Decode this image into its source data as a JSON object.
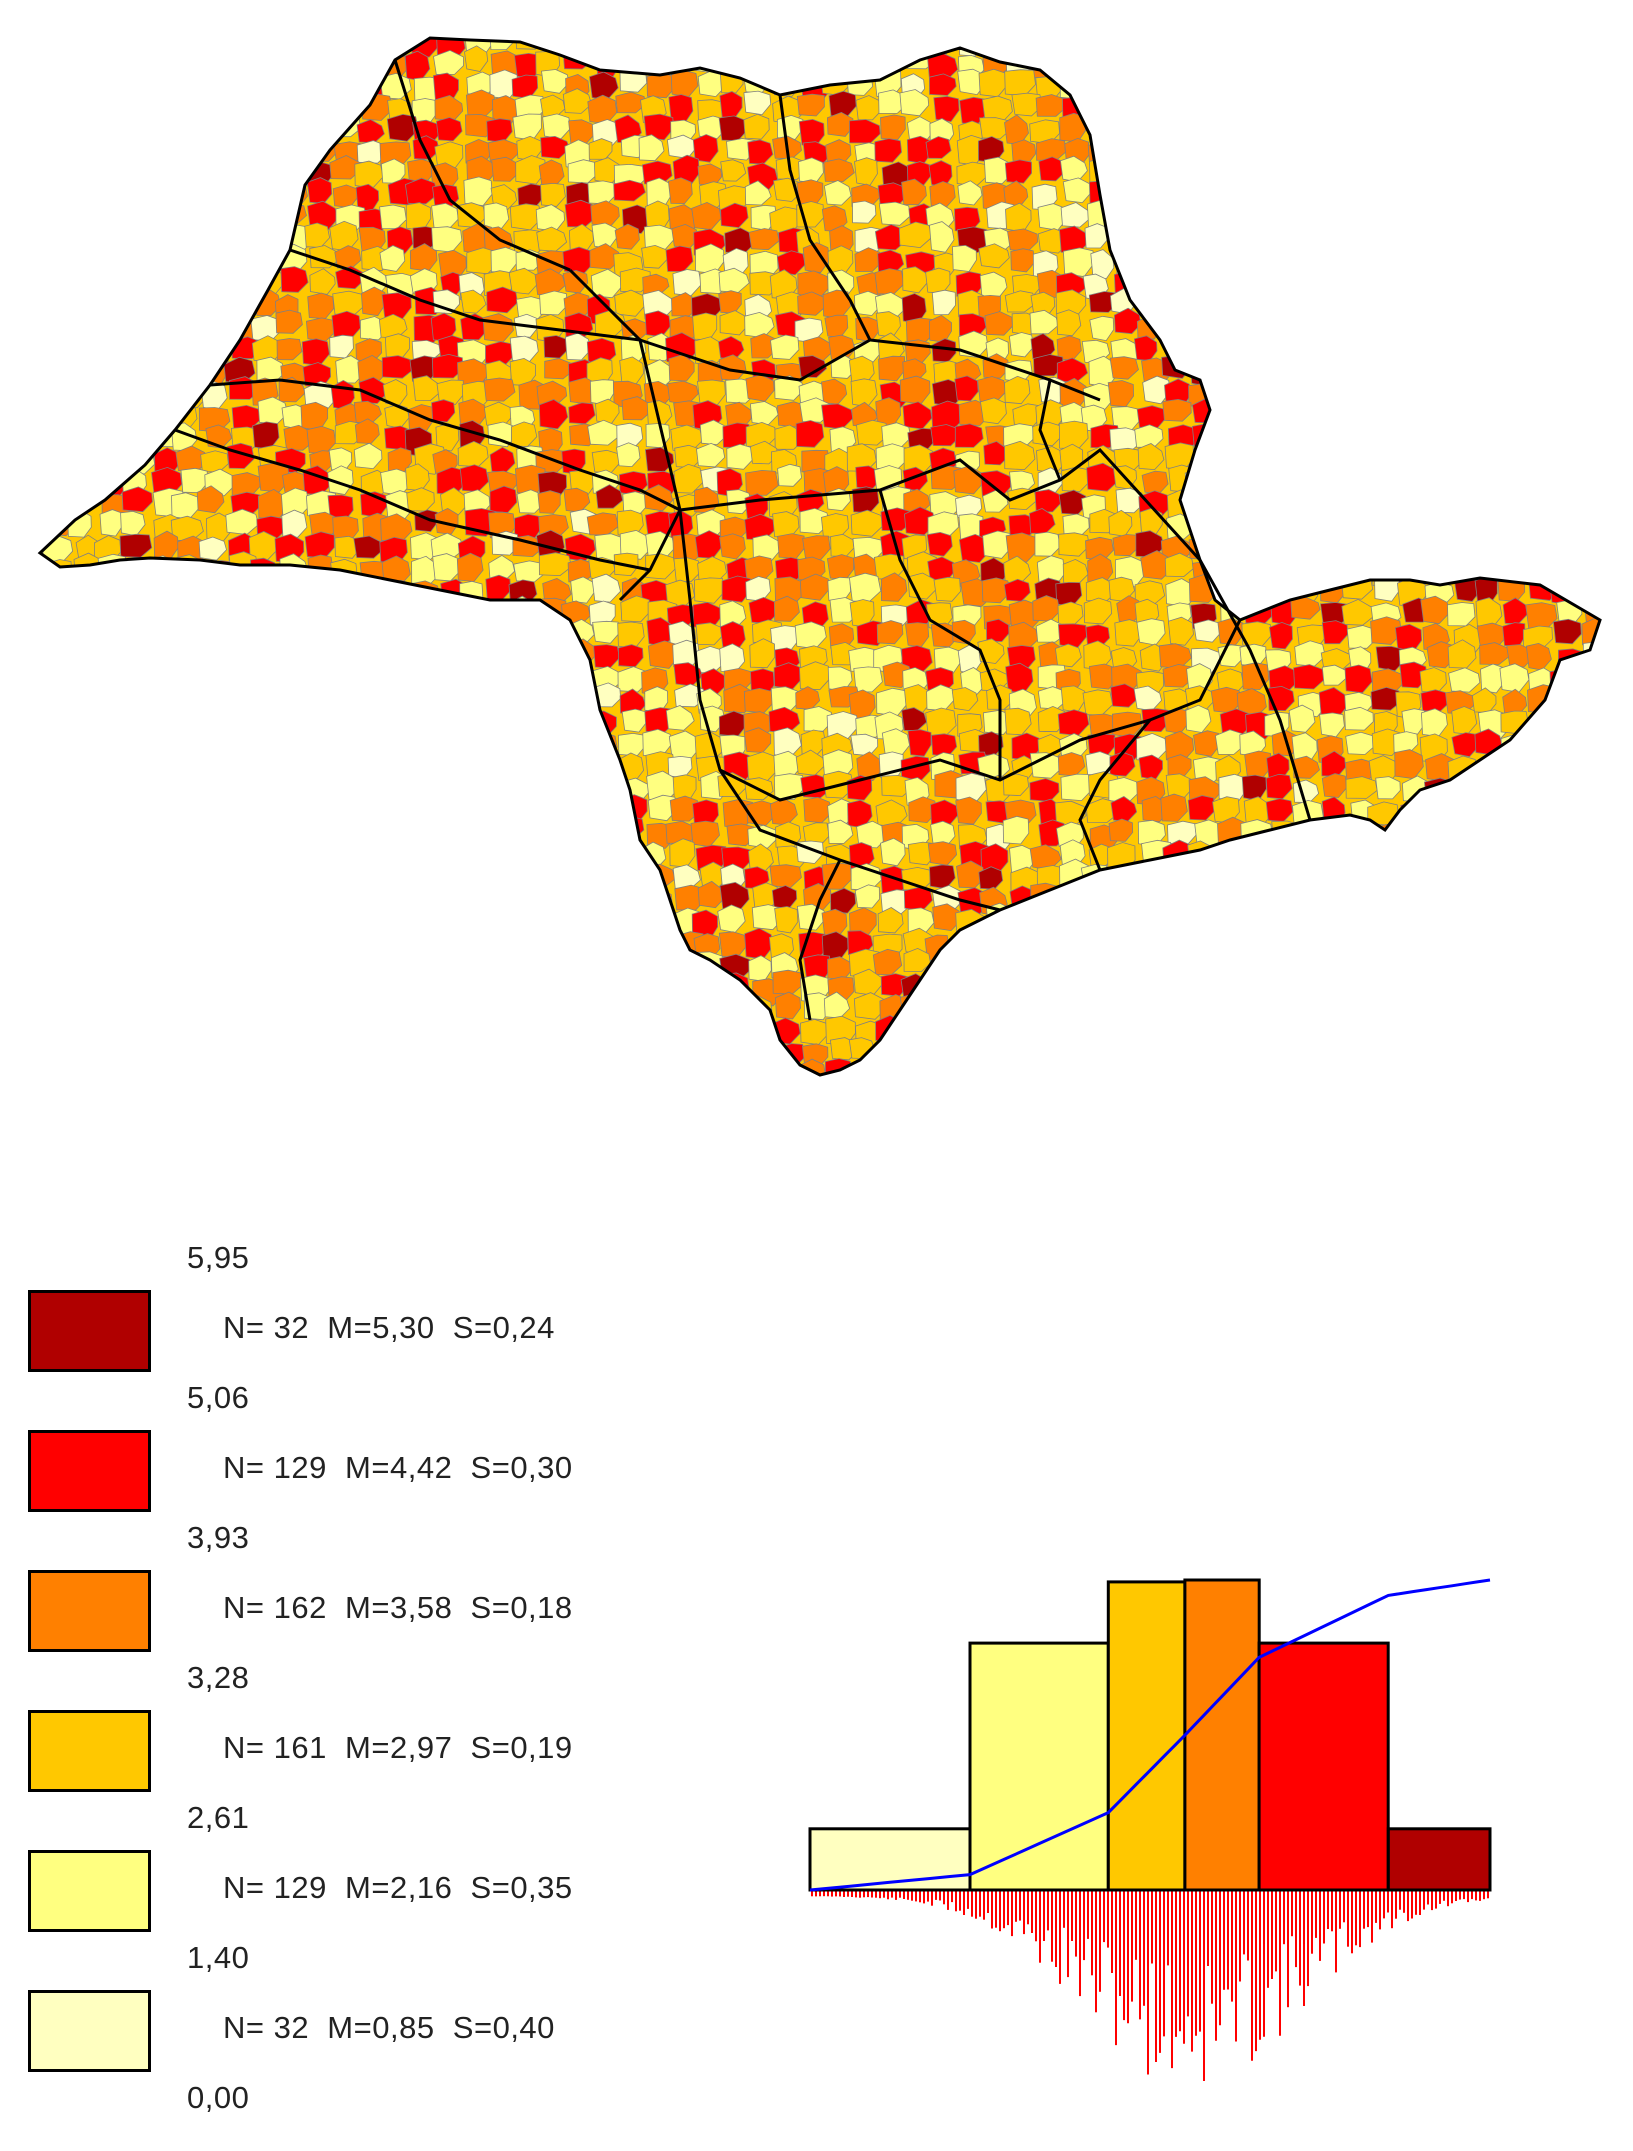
{
  "map": {
    "colors": {
      "class_6": "#b00000",
      "class_5": "#ff0000",
      "class_4": "#ff8000",
      "class_3": "#ffc800",
      "class_2": "#ffff80",
      "class_1": "#ffffc0",
      "municipality_border": "#808080",
      "region_border": "#000000"
    }
  },
  "legend": {
    "breaks": [
      "5,95",
      "5,06",
      "3,93",
      "3,28",
      "2,61",
      "1,40",
      "0,00"
    ],
    "classes": [
      {
        "stats": "N= 32  M=5,30  S=0,24",
        "color": "#b00000"
      },
      {
        "stats": "N= 129  M=4,42  S=0,30",
        "color": "#ff0000"
      },
      {
        "stats": "N= 162  M=3,58  S=0,18",
        "color": "#ff8000"
      },
      {
        "stats": "N= 161  M=2,97  S=0,19",
        "color": "#ffc800"
      },
      {
        "stats": "N= 129  M=2,16  S=0,35",
        "color": "#ffff80"
      },
      {
        "stats": "N= 32  M=0,85  S=0,40",
        "color": "#ffffc0"
      }
    ]
  },
  "chart_data": {
    "type": "bar",
    "categories": [
      "0,00-1,40",
      "1,40-2,61",
      "2,61-3,28",
      "3,28-3,93",
      "3,93-5,06",
      "5,06-5,95"
    ],
    "class_limits": [
      0.0,
      1.4,
      2.61,
      3.28,
      3.93,
      5.06,
      5.95
    ],
    "values": [
      32,
      129,
      161,
      162,
      129,
      32
    ],
    "colors": [
      "#ffffc0",
      "#ffff80",
      "#ffc800",
      "#ff8000",
      "#ff0000",
      "#b00000"
    ],
    "cumulative_curve_color": "#0000ff",
    "spike_color": "#ff0000",
    "title": "",
    "xlabel": "",
    "ylabel": "",
    "grid": false
  }
}
